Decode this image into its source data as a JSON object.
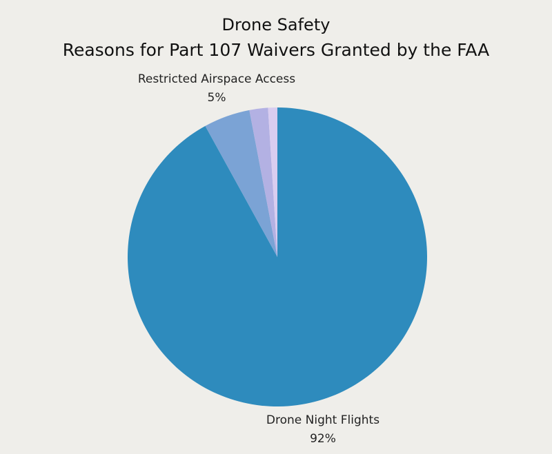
{
  "chart_data": {
    "type": "pie",
    "title": "Reasons for Part 107 Waivers Granted by the FAA",
    "subtitle": "Drone Safety",
    "start": "top",
    "direction": "clockwise",
    "slices": [
      {
        "label": "Drone Night Flights",
        "value": 92,
        "value_label": "92%",
        "color": "#2e8bbd"
      },
      {
        "label": "Restricted Airspace Access",
        "value": 5,
        "value_label": "5%",
        "color": "#7ba3d5"
      },
      {
        "label": "",
        "value": 2,
        "value_label": "",
        "color": "#b3b1e3"
      },
      {
        "label": "",
        "value": 1,
        "value_label": "",
        "color": "#d9cdf0"
      }
    ]
  }
}
